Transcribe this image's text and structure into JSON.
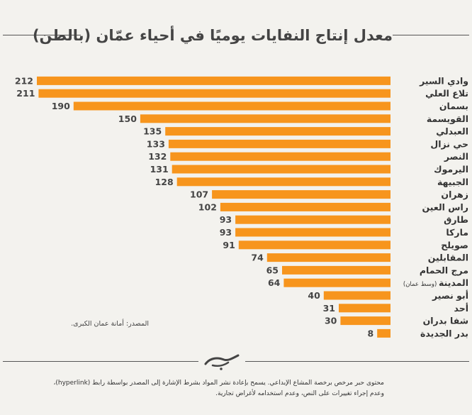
{
  "chart_data": {
    "type": "bar",
    "orientation": "horizontal",
    "title": "معدل إنتاج النفايات يوميًا في أحياء عمّان (بالطن)",
    "xlabel": "",
    "ylabel": "",
    "bar_color": "#f7951d",
    "categories": [
      {
        "name": "وادي السير",
        "note": ""
      },
      {
        "name": "تلاع العلي",
        "note": ""
      },
      {
        "name": "بسمان",
        "note": ""
      },
      {
        "name": "القويسمة",
        "note": ""
      },
      {
        "name": "العبدلي",
        "note": ""
      },
      {
        "name": "حي نزال",
        "note": ""
      },
      {
        "name": "النصر",
        "note": ""
      },
      {
        "name": "اليرموك",
        "note": ""
      },
      {
        "name": "الجبيهة",
        "note": ""
      },
      {
        "name": "زهران",
        "note": ""
      },
      {
        "name": "راس العين",
        "note": ""
      },
      {
        "name": "طارق",
        "note": ""
      },
      {
        "name": "ماركا",
        "note": ""
      },
      {
        "name": "صويلح",
        "note": ""
      },
      {
        "name": "المقابلين",
        "note": ""
      },
      {
        "name": "مرج الحمام",
        "note": ""
      },
      {
        "name": "المدينة",
        "note": "(وسط عمان)"
      },
      {
        "name": "أبو نصير",
        "note": ""
      },
      {
        "name": "أحد",
        "note": ""
      },
      {
        "name": "شفا بدران",
        "note": ""
      },
      {
        "name": "بدر الجديدة",
        "note": ""
      }
    ],
    "values": [
      212,
      211,
      190,
      150,
      135,
      133,
      132,
      131,
      128,
      107,
      102,
      93,
      93,
      91,
      74,
      65,
      64,
      40,
      31,
      30,
      8
    ],
    "xlim": [
      0,
      212
    ]
  },
  "source": "المصدر: أمانة عمان الكبرى.",
  "footer": {
    "line1": "محتوى حبر مرخص برخصة المشاع الإبداعي. يسمح بإعادة نشر المواد بشرط الإشارة إلى المصدر بواسطة رابط (hyperlink)،",
    "line2": "وعدم إجراء تغييرات على النص، وعدم استخدامه لأغراض تجارية."
  },
  "logo_icon": "hiber-logo-icon"
}
